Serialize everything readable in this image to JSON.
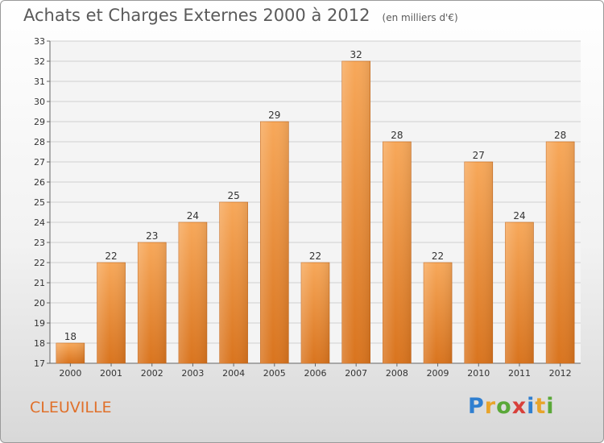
{
  "header": {
    "title": "Achats et Charges Externes 2000 à 2012",
    "unit": "(en milliers d'€)"
  },
  "footer": {
    "city": "CLEUVILLE",
    "logo_letters": [
      "P",
      "r",
      "o",
      "x",
      "i",
      "t",
      "i"
    ]
  },
  "colors": {
    "bar_top": "#f7a85a",
    "bar_bottom": "#d9741e",
    "title": "#5a5a5a",
    "city": "#e0702a"
  },
  "chart_data": {
    "type": "bar",
    "title": "Achats et Charges Externes 2000 à 2012",
    "subtitle": "(en milliers d'€)",
    "xlabel": "",
    "ylabel": "",
    "categories": [
      "2000",
      "2001",
      "2002",
      "2003",
      "2004",
      "2005",
      "2006",
      "2007",
      "2008",
      "2009",
      "2010",
      "2011",
      "2012"
    ],
    "values": [
      18,
      22,
      23,
      24,
      25,
      29,
      22,
      32,
      28,
      22,
      27,
      24,
      28
    ],
    "ylim": [
      17,
      33
    ],
    "yticks": [
      17,
      18,
      19,
      20,
      21,
      22,
      23,
      24,
      25,
      26,
      27,
      28,
      29,
      30,
      31,
      32,
      33
    ],
    "grid": true,
    "legend": "none"
  }
}
